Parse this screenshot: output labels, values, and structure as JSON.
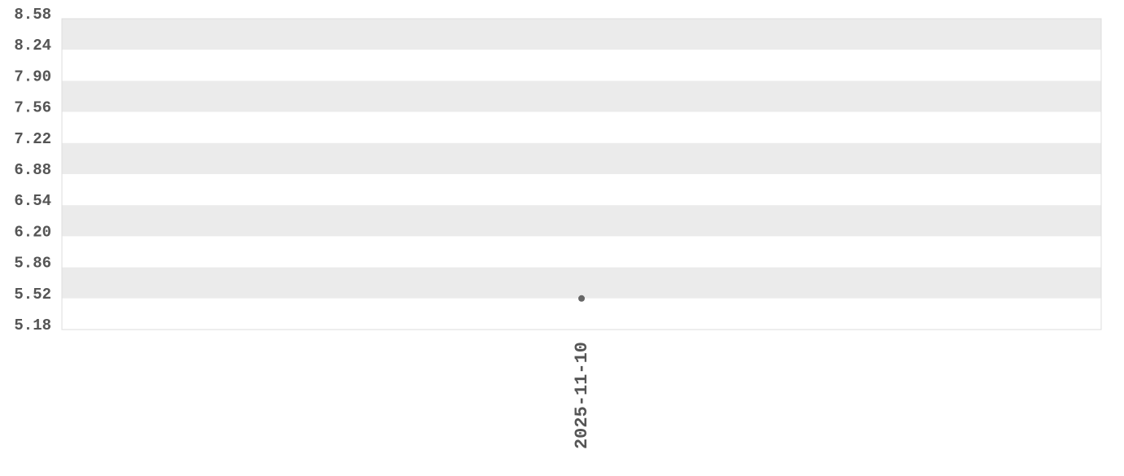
{
  "chart_data": {
    "type": "scatter",
    "title": "",
    "xlabel": "",
    "ylabel": "",
    "x_tick_labels": [
      "2025-11-10"
    ],
    "y_tick_labels": [
      "8.58",
      "8.24",
      "7.90",
      "7.56",
      "7.22",
      "6.88",
      "6.54",
      "6.20",
      "5.86",
      "5.52",
      "5.18"
    ],
    "ylim": [
      5.18,
      8.58
    ],
    "grid": "alternating horizontal bands",
    "points": [
      {
        "x": "2025-11-10",
        "y": 5.52
      }
    ],
    "colors": {
      "point": "#666666",
      "band": "#ebebeb",
      "text": "#555555",
      "border": "#dddddd"
    }
  }
}
